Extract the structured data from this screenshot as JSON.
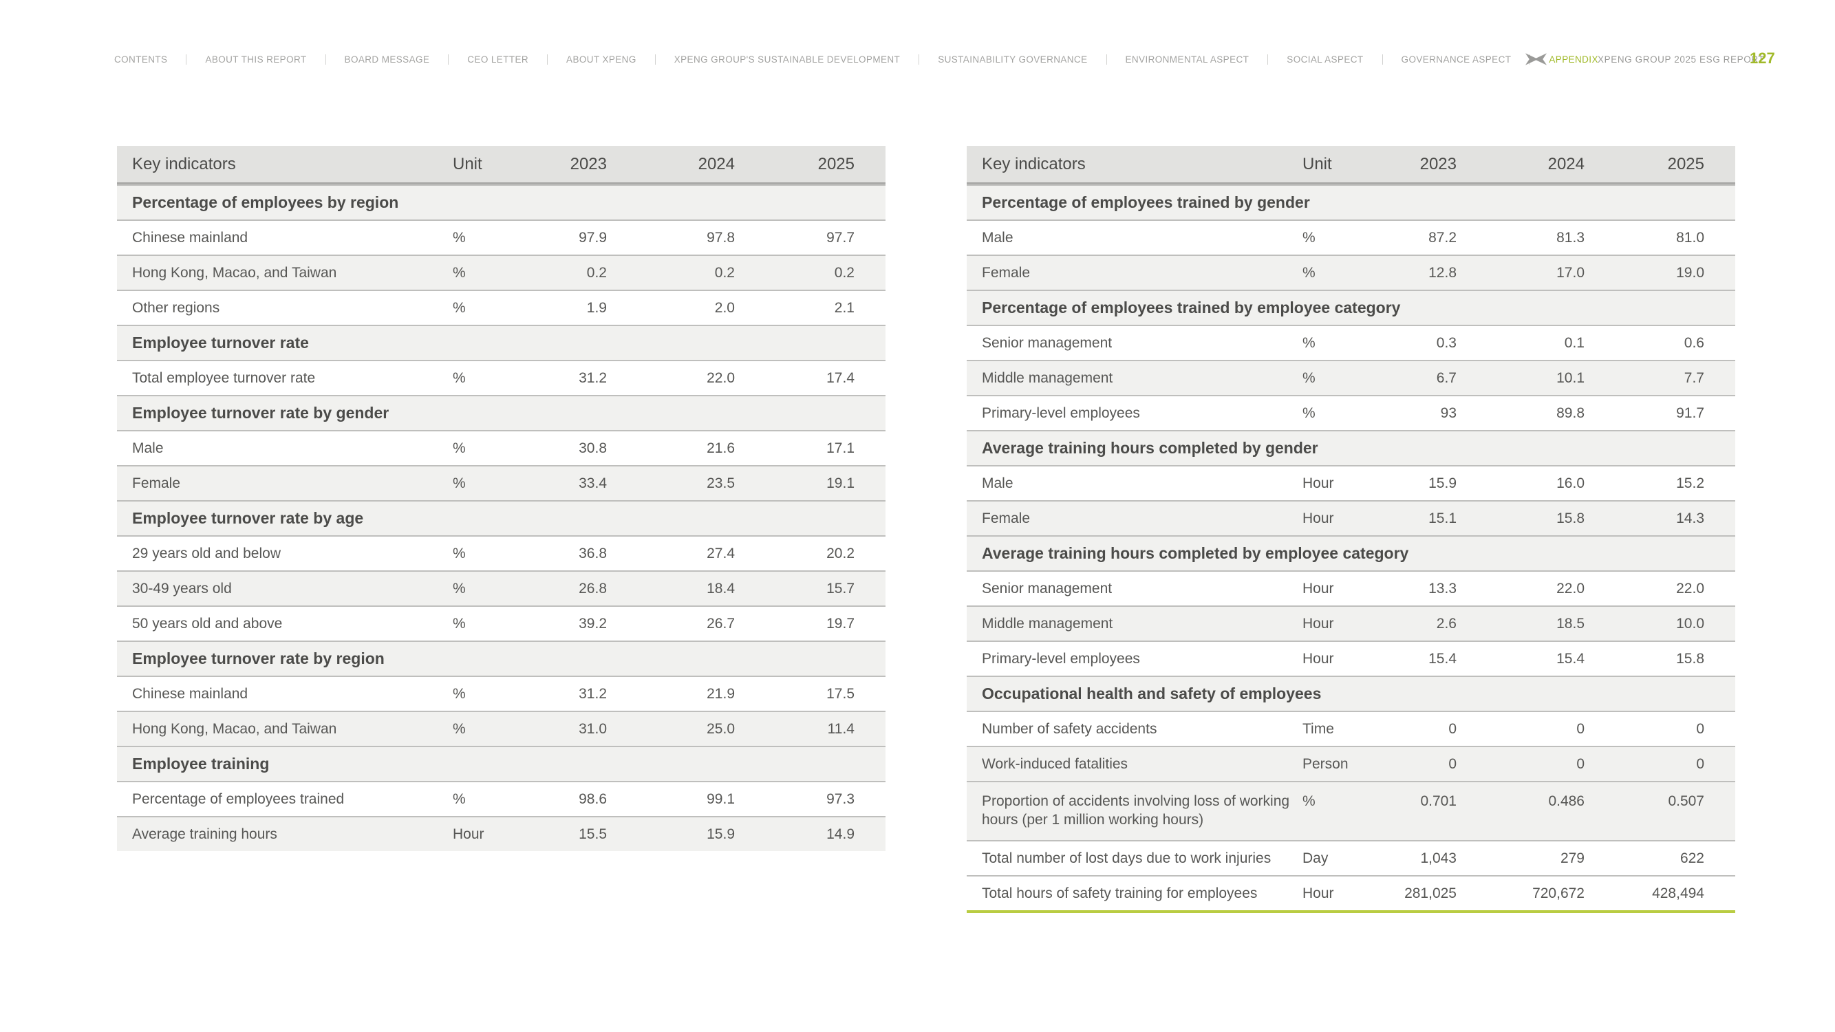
{
  "header": {
    "report_title": "XPENG GROUP 2025 ESG REPORT",
    "page_number": "127",
    "nav_items": [
      {
        "label": "CONTENTS",
        "active": false
      },
      {
        "label": "ABOUT THIS REPORT",
        "active": false
      },
      {
        "label": "BOARD MESSAGE",
        "active": false
      },
      {
        "label": "CEO LETTER",
        "active": false
      },
      {
        "label": "ABOUT XPENG",
        "active": false
      },
      {
        "label": "XPENG GROUP'S SUSTAINABLE DEVELOPMENT",
        "active": false
      },
      {
        "label": "SUSTAINABILITY GOVERNANCE",
        "active": false
      },
      {
        "label": "ENVIRONMENTAL ASPECT",
        "active": false
      },
      {
        "label": "SOCIAL ASPECT",
        "active": false
      },
      {
        "label": "GOVERNANCE ASPECT",
        "active": false
      },
      {
        "label": "APPENDIX",
        "active": true
      }
    ]
  },
  "colors": {
    "accent_green_text": "#a0b928",
    "accent_green_line": "#b9cc42",
    "header_row_bg": "#e2e2e0",
    "shaded_row_bg": "#f1f1ef"
  },
  "tables": [
    {
      "id": "table-left",
      "columns": [
        "Key indicators",
        "Unit",
        "2023",
        "2024",
        "2025"
      ],
      "green_end": false,
      "rows": [
        {
          "type": "section",
          "label": "Percentage of employees by region"
        },
        {
          "type": "data",
          "label": "Chinese mainland",
          "unit": "%",
          "values": [
            "97.9",
            "97.8",
            "97.7"
          ],
          "shaded": false
        },
        {
          "type": "data",
          "label": "Hong Kong, Macao, and Taiwan",
          "unit": "%",
          "values": [
            "0.2",
            "0.2",
            "0.2"
          ],
          "shaded": true
        },
        {
          "type": "data",
          "label": "Other regions",
          "unit": "%",
          "values": [
            "1.9",
            "2.0",
            "2.1"
          ],
          "shaded": false
        },
        {
          "type": "section",
          "label": "Employee turnover rate"
        },
        {
          "type": "data",
          "label": "Total employee turnover rate",
          "unit": "%",
          "values": [
            "31.2",
            "22.0",
            "17.4"
          ],
          "shaded": false
        },
        {
          "type": "section",
          "label": "Employee turnover rate by gender"
        },
        {
          "type": "data",
          "label": "Male",
          "unit": "%",
          "values": [
            "30.8",
            "21.6",
            "17.1"
          ],
          "shaded": false
        },
        {
          "type": "data",
          "label": "Female",
          "unit": "%",
          "values": [
            "33.4",
            "23.5",
            "19.1"
          ],
          "shaded": true
        },
        {
          "type": "section",
          "label": "Employee turnover rate by age"
        },
        {
          "type": "data",
          "label": "29 years old and below",
          "unit": "%",
          "values": [
            "36.8",
            "27.4",
            "20.2"
          ],
          "shaded": false
        },
        {
          "type": "data",
          "label": "30-49 years old",
          "unit": "%",
          "values": [
            "26.8",
            "18.4",
            "15.7"
          ],
          "shaded": true
        },
        {
          "type": "data",
          "label": "50 years old and above",
          "unit": "%",
          "values": [
            "39.2",
            "26.7",
            "19.7"
          ],
          "shaded": false
        },
        {
          "type": "section",
          "label": "Employee turnover rate by region"
        },
        {
          "type": "data",
          "label": "Chinese mainland",
          "unit": "%",
          "values": [
            "31.2",
            "21.9",
            "17.5"
          ],
          "shaded": false
        },
        {
          "type": "data",
          "label": "Hong Kong, Macao, and Taiwan",
          "unit": "%",
          "values": [
            "31.0",
            "25.0",
            "11.4"
          ],
          "shaded": true
        },
        {
          "type": "section",
          "label": "Employee training"
        },
        {
          "type": "data",
          "label": "Percentage of employees trained",
          "unit": "%",
          "values": [
            "98.6",
            "99.1",
            "97.3"
          ],
          "shaded": false
        },
        {
          "type": "data",
          "label": "Average training hours",
          "unit": "Hour",
          "values": [
            "15.5",
            "15.9",
            "14.9"
          ],
          "shaded": true
        }
      ]
    },
    {
      "id": "table-right",
      "columns": [
        "Key indicators",
        "Unit",
        "2023",
        "2024",
        "2025"
      ],
      "green_end": true,
      "rows": [
        {
          "type": "section",
          "label": "Percentage of employees trained by gender"
        },
        {
          "type": "data",
          "label": "Male",
          "unit": "%",
          "values": [
            "87.2",
            "81.3",
            "81.0"
          ],
          "shaded": false
        },
        {
          "type": "data",
          "label": "Female",
          "unit": "%",
          "values": [
            "12.8",
            "17.0",
            "19.0"
          ],
          "shaded": true
        },
        {
          "type": "section",
          "label": "Percentage of employees trained by employee category"
        },
        {
          "type": "data",
          "label": "Senior management",
          "unit": "%",
          "values": [
            "0.3",
            "0.1",
            "0.6"
          ],
          "shaded": false
        },
        {
          "type": "data",
          "label": "Middle management",
          "unit": "%",
          "values": [
            "6.7",
            "10.1",
            "7.7"
          ],
          "shaded": true
        },
        {
          "type": "data",
          "label": "Primary-level employees",
          "unit": "%",
          "values": [
            "93",
            "89.8",
            "91.7"
          ],
          "shaded": false
        },
        {
          "type": "section",
          "label": "Average training hours completed by gender"
        },
        {
          "type": "data",
          "label": "Male",
          "unit": "Hour",
          "values": [
            "15.9",
            "16.0",
            "15.2"
          ],
          "shaded": false
        },
        {
          "type": "data",
          "label": "Female",
          "unit": "Hour",
          "values": [
            "15.1",
            "15.8",
            "14.3"
          ],
          "shaded": true
        },
        {
          "type": "section",
          "label": "Average training hours completed by employee category"
        },
        {
          "type": "data",
          "label": "Senior management",
          "unit": "Hour",
          "values": [
            "13.3",
            "22.0",
            "22.0"
          ],
          "shaded": false
        },
        {
          "type": "data",
          "label": "Middle management",
          "unit": "Hour",
          "values": [
            "2.6",
            "18.5",
            "10.0"
          ],
          "shaded": true
        },
        {
          "type": "data",
          "label": "Primary-level employees",
          "unit": "Hour",
          "values": [
            "15.4",
            "15.4",
            "15.8"
          ],
          "shaded": false
        },
        {
          "type": "section",
          "label": "Occupational health and safety of employees"
        },
        {
          "type": "data",
          "label": "Number of safety accidents",
          "unit": "Time",
          "values": [
            "0",
            "0",
            "0"
          ],
          "shaded": false
        },
        {
          "type": "data",
          "label": "Work-induced fatalities",
          "unit": "Person",
          "values": [
            "0",
            "0",
            "0"
          ],
          "shaded": true
        },
        {
          "type": "data",
          "label": "Proportion of accidents involving loss of working hours (per 1 million working hours)",
          "unit": "%",
          "values": [
            "0.701",
            "0.486",
            "0.507"
          ],
          "shaded": true,
          "tall": true
        },
        {
          "type": "data",
          "label": "Total number of lost days due to work injuries",
          "unit": "Day",
          "values": [
            "1,043",
            "279",
            "622"
          ],
          "shaded": false
        },
        {
          "type": "data",
          "label": "Total hours of safety training for employees",
          "unit": "Hour",
          "values": [
            "281,025",
            "720,672",
            "428,494"
          ],
          "shaded": false
        }
      ]
    }
  ]
}
